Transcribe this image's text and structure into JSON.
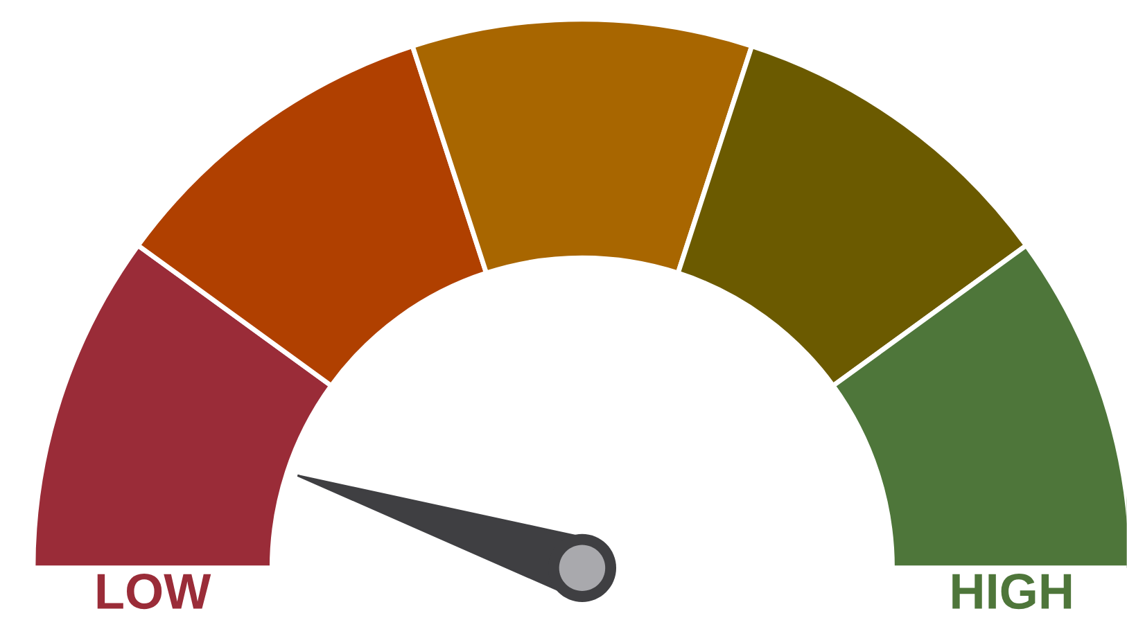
{
  "chart_data": {
    "type": "donut",
    "categories": [
      "LOW",
      null,
      null,
      null,
      "HIGH"
    ],
    "values": [
      20,
      20,
      20,
      20,
      20
    ],
    "colors": [
      "#9a2c38",
      "#b04000",
      "#a86600",
      "#6b5a00",
      "#4e763a"
    ],
    "needle": "LOW"
  }
}
